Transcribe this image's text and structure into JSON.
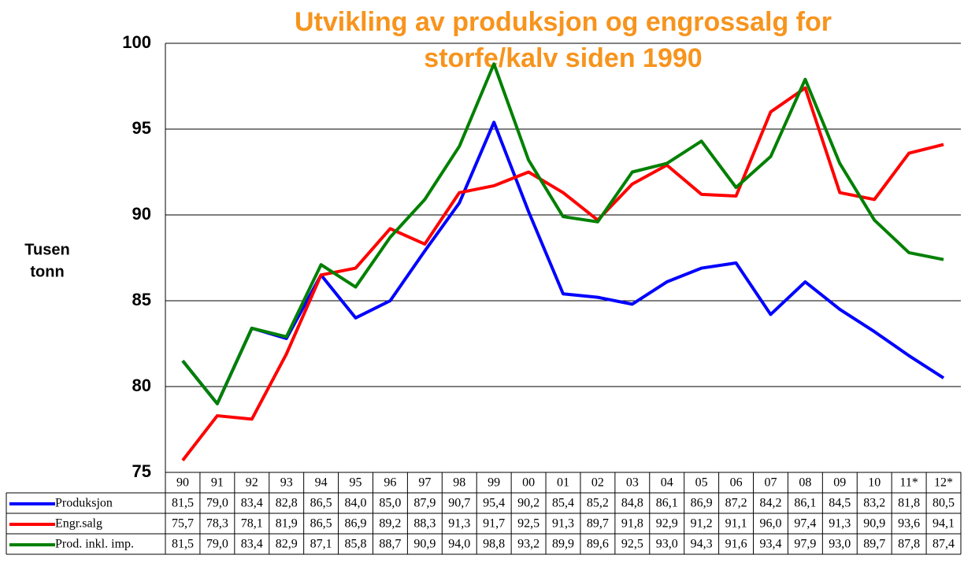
{
  "chart_data": {
    "type": "line",
    "title": [
      "Utvikling av produksjon og engrossalg for",
      "storfe/kalv siden 1990"
    ],
    "y_label": [
      "Tusen",
      "tonn"
    ],
    "categories": [
      "90",
      "91",
      "92",
      "93",
      "94",
      "95",
      "96",
      "97",
      "98",
      "99",
      "00",
      "01",
      "02",
      "03",
      "04",
      "05",
      "06",
      "07",
      "08",
      "09",
      "10",
      "11*",
      "12*"
    ],
    "ylim": [
      75,
      100
    ],
    "yticks": [
      75,
      80,
      85,
      90,
      95,
      100
    ],
    "grid": true,
    "series": [
      {
        "name": "Produksjon",
        "color": "#0000ff",
        "values": [
          81.5,
          79.0,
          83.4,
          82.8,
          86.5,
          84.0,
          85.0,
          87.9,
          90.7,
          95.4,
          90.2,
          85.4,
          85.2,
          84.8,
          86.1,
          86.9,
          87.2,
          84.2,
          86.1,
          84.5,
          83.2,
          81.8,
          80.5
        ],
        "value_labels": [
          "81,5",
          "79,0",
          "83,4",
          "82,8",
          "86,5",
          "84,0",
          "85,0",
          "87,9",
          "90,7",
          "95,4",
          "90,2",
          "85,4",
          "85,2",
          "84,8",
          "86,1",
          "86,9",
          "87,2",
          "84,2",
          "86,1",
          "84,5",
          "83,2",
          "81,8",
          "80,5"
        ]
      },
      {
        "name": "Engr.salg",
        "color": "#ff0000",
        "values": [
          75.7,
          78.3,
          78.1,
          81.9,
          86.5,
          86.9,
          89.2,
          88.3,
          91.3,
          91.7,
          92.5,
          91.3,
          89.7,
          91.8,
          92.9,
          91.2,
          91.1,
          96.0,
          97.4,
          91.3,
          90.9,
          93.6,
          94.1
        ],
        "value_labels": [
          "75,7",
          "78,3",
          "78,1",
          "81,9",
          "86,5",
          "86,9",
          "89,2",
          "88,3",
          "91,3",
          "91,7",
          "92,5",
          "91,3",
          "89,7",
          "91,8",
          "92,9",
          "91,2",
          "91,1",
          "96,0",
          "97,4",
          "91,3",
          "90,9",
          "93,6",
          "94,1"
        ]
      },
      {
        "name": "Prod. inkl. imp.",
        "color": "#008000",
        "values": [
          81.5,
          79.0,
          83.4,
          82.9,
          87.1,
          85.8,
          88.7,
          90.9,
          94.0,
          98.8,
          93.2,
          89.9,
          89.6,
          92.5,
          93.0,
          94.3,
          91.6,
          93.4,
          97.9,
          93.0,
          89.7,
          87.8,
          87.4
        ],
        "value_labels": [
          "81,5",
          "79,0",
          "83,4",
          "82,9",
          "87,1",
          "85,8",
          "88,7",
          "90,9",
          "94,0",
          "98,8",
          "93,2",
          "89,9",
          "89,6",
          "92,5",
          "93,0",
          "94,3",
          "91,6",
          "93,4",
          "97,9",
          "93,0",
          "89,7",
          "87,8",
          "87,4"
        ]
      }
    ]
  }
}
